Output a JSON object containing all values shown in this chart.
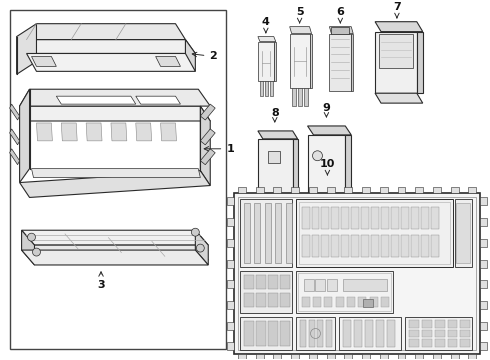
{
  "background": "#ffffff",
  "lc": "#2a2a2a",
  "lc_light": "#666666",
  "lc_gray": "#999999",
  "fc_light": "#f5f5f5",
  "fc_mid": "#e8e8e8",
  "fc_dark": "#d0d0d0",
  "fig_w": 4.9,
  "fig_h": 3.6,
  "dpi": 100
}
